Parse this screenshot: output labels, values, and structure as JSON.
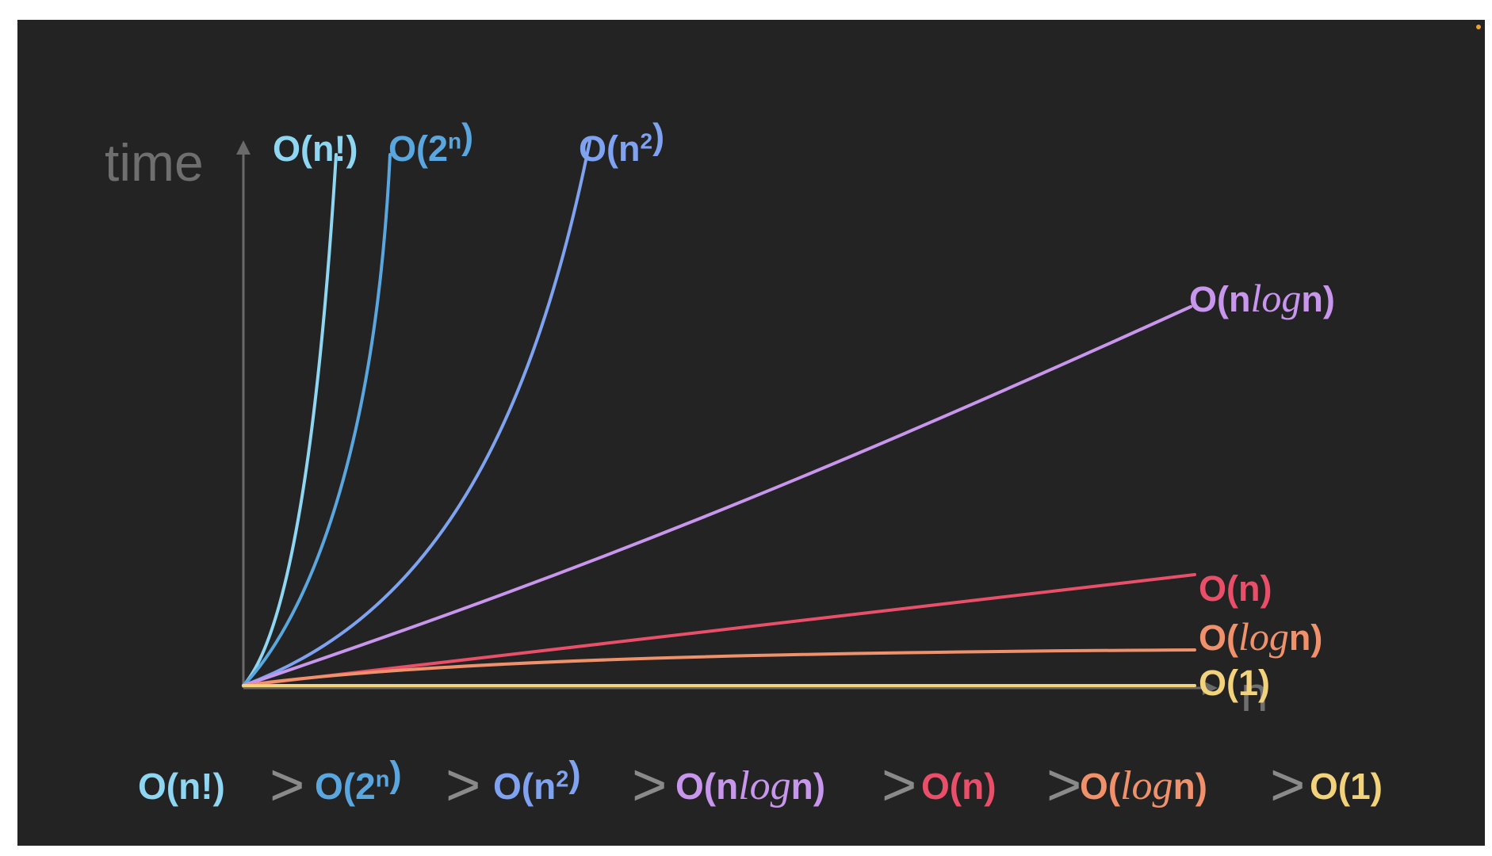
{
  "chart_data": {
    "type": "line",
    "title": "",
    "xlabel": "n",
    "ylabel": "time",
    "grid": false,
    "legend": "labels at curve ends",
    "series": [
      {
        "name": "O(n!)",
        "color": "#8fd6f2",
        "label_parts": [
          {
            "t": "O(n!)"
          }
        ],
        "values": "factorial"
      },
      {
        "name": "O(2ⁿ)",
        "color": "#5aa7e0",
        "label_parts": [
          {
            "t": "O(2"
          },
          {
            "t": "n",
            "sup": true
          },
          {
            "t": ")"
          }
        ],
        "values": "exponential"
      },
      {
        "name": "O(n²)",
        "color": "#7fa3f0",
        "label_parts": [
          {
            "t": "O(n"
          },
          {
            "t": "2",
            "sup": true
          },
          {
            "t": ")"
          }
        ],
        "values": "quadratic"
      },
      {
        "name": "O(nlogn)",
        "color": "#c896ec",
        "label_parts": [
          {
            "t": "O(n"
          },
          {
            "t": "log",
            "italic": true
          },
          {
            "t": "n)"
          }
        ],
        "values": "linearithmic"
      },
      {
        "name": "O(n)",
        "color": "#ea4f6a",
        "label_parts": [
          {
            "t": "O(n)"
          }
        ],
        "values": "linear"
      },
      {
        "name": "O(logn)",
        "color": "#f0916b",
        "label_parts": [
          {
            "t": "O("
          },
          {
            "t": "log",
            "italic": true
          },
          {
            "t": "n)"
          }
        ],
        "values": "logarithmic"
      },
      {
        "name": "O(1)",
        "color": "#f3d27c",
        "label_parts": [
          {
            "t": "O(1)"
          }
        ],
        "values": "constant"
      }
    ],
    "ordering": {
      "separator": ">",
      "items": [
        "O(n!)",
        "O(2ⁿ)",
        "O(n²)",
        "O(nlogn)",
        "O(n)",
        "O(logn)",
        "O(1)"
      ]
    }
  },
  "colors": {
    "background": "#232323",
    "axis": "#6a6a6a",
    "separator": "#8a8a8a"
  }
}
